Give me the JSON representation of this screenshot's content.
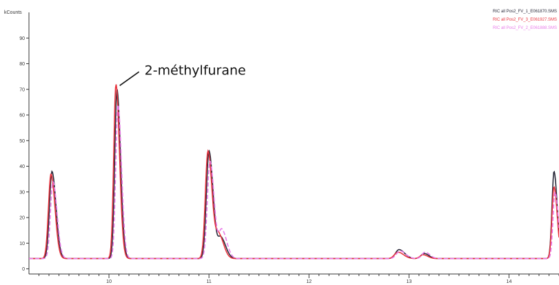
{
  "chart_data": {
    "type": "line",
    "title": "",
    "ylabel": "kCounts",
    "xlabel": "",
    "xlim": [
      9.2,
      14.5
    ],
    "ylim": [
      -2,
      100
    ],
    "x_ticks": [
      {
        "value": 9.2,
        "label": ""
      },
      {
        "value": 10,
        "label": "10"
      },
      {
        "value": 11,
        "label": "11"
      },
      {
        "value": 12,
        "label": "12"
      },
      {
        "value": 13,
        "label": "13"
      },
      {
        "value": 14,
        "label": "14"
      }
    ],
    "y_ticks": [
      {
        "value": 0,
        "label": "0"
      },
      {
        "value": 10,
        "label": "10"
      },
      {
        "value": 20,
        "label": "20"
      },
      {
        "value": 30,
        "label": "30"
      },
      {
        "value": 40,
        "label": "40"
      },
      {
        "value": 50,
        "label": "50"
      },
      {
        "value": 60,
        "label": "60"
      },
      {
        "value": 70,
        "label": "70"
      },
      {
        "value": 80,
        "label": "80"
      },
      {
        "value": 90,
        "label": "90"
      }
    ],
    "grid": false,
    "legend_position": "top-right",
    "annotation": {
      "text": "2-méthylfurane",
      "x": 10.08,
      "y": 72
    },
    "series": [
      {
        "name": "RIC all Pos2_FV_1_E061870.SMS",
        "color": "#2a2a3a",
        "dash": "solid",
        "peaks": [
          [
            9.43,
            36,
            0.025
          ],
          [
            10.08,
            68,
            0.022
          ],
          [
            11.0,
            44,
            0.026
          ],
          [
            11.12,
            10,
            0.03
          ],
          [
            12.9,
            5.5,
            0.035
          ],
          [
            13.15,
            4,
            0.03
          ],
          [
            14.45,
            36,
            0.02
          ]
        ]
      },
      {
        "name": "RIC all Pos2_FV_3_E061927.SMS",
        "color": "#e8323c",
        "dash": "solid",
        "peaks": [
          [
            9.42,
            35,
            0.025
          ],
          [
            10.07,
            70,
            0.022
          ],
          [
            10.99,
            44,
            0.026
          ],
          [
            11.1,
            11,
            0.03
          ],
          [
            12.89,
            4.5,
            0.035
          ],
          [
            13.14,
            3.5,
            0.03
          ],
          [
            14.45,
            30,
            0.02
          ]
        ]
      },
      {
        "name": "RIC all Pos2_FV_2_E061888.SMS",
        "color": "#e87ae8",
        "dash": "dashed",
        "peaks": [
          [
            9.44,
            32,
            0.025
          ],
          [
            10.09,
            62,
            0.022
          ],
          [
            11.01,
            40,
            0.026
          ],
          [
            11.13,
            13,
            0.03
          ],
          [
            12.91,
            5,
            0.035
          ],
          [
            13.16,
            4.5,
            0.03
          ],
          [
            14.46,
            28,
            0.02
          ]
        ]
      }
    ],
    "baseline": 4
  }
}
